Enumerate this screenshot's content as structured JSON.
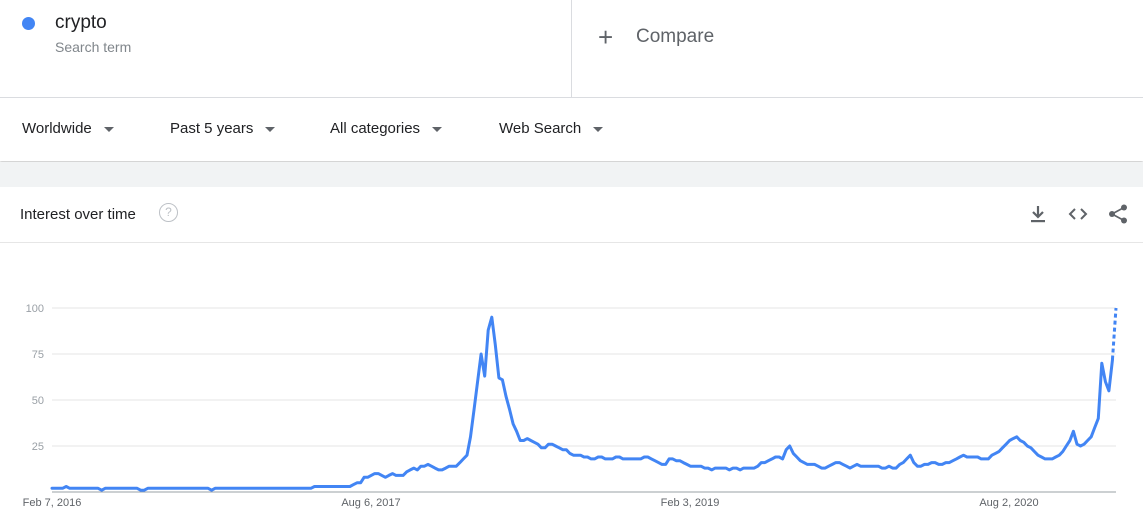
{
  "search_term": {
    "name": "crypto",
    "subtitle": "Search term",
    "color": "#4285f4"
  },
  "compare": {
    "label": "Compare"
  },
  "filters": {
    "region": "Worldwide",
    "time": "Past 5 years",
    "category": "All categories",
    "property": "Web Search"
  },
  "card": {
    "title": "Interest over time",
    "help_icon": "help-icon",
    "icons": [
      "download-icon",
      "embed-icon",
      "share-icon"
    ]
  },
  "chart_data": {
    "type": "line",
    "title": "Interest over time",
    "xlabel": "",
    "ylabel": "",
    "ylim": [
      0,
      100
    ],
    "yticks": [
      25,
      50,
      75,
      100
    ],
    "xticks": [
      "Feb 7, 2016",
      "Aug 6, 2017",
      "Feb 3, 2019",
      "Aug 2, 2020"
    ],
    "color": "#4285f4",
    "grid": true,
    "series": [
      {
        "name": "crypto",
        "values": [
          2,
          2,
          2,
          2,
          3,
          2,
          2,
          2,
          2,
          2,
          2,
          2,
          2,
          2,
          1,
          2,
          2,
          2,
          2,
          2,
          2,
          2,
          2,
          2,
          2,
          1,
          1,
          2,
          2,
          2,
          2,
          2,
          2,
          2,
          2,
          2,
          2,
          2,
          2,
          2,
          2,
          2,
          2,
          2,
          2,
          1,
          2,
          2,
          2,
          2,
          2,
          2,
          2,
          2,
          2,
          2,
          2,
          2,
          2,
          2,
          2,
          2,
          2,
          2,
          2,
          2,
          2,
          2,
          2,
          2,
          2,
          2,
          2,
          2,
          3,
          3,
          3,
          3,
          3,
          3,
          3,
          3,
          3,
          3,
          3,
          4,
          5,
          5,
          8,
          8,
          9,
          10,
          10,
          9,
          8,
          9,
          10,
          9,
          9,
          9,
          11,
          12,
          13,
          12,
          14,
          14,
          15,
          14,
          13,
          12,
          12,
          13,
          14,
          14,
          14,
          16,
          18,
          20,
          30,
          45,
          60,
          75,
          63,
          88,
          95,
          80,
          62,
          61,
          52,
          45,
          37,
          33,
          28,
          28,
          29,
          28,
          27,
          26,
          24,
          24,
          26,
          26,
          25,
          24,
          23,
          23,
          21,
          20,
          20,
          20,
          19,
          19,
          18,
          18,
          19,
          19,
          18,
          18,
          18,
          19,
          19,
          18,
          18,
          18,
          18,
          18,
          18,
          19,
          19,
          18,
          17,
          16,
          15,
          15,
          18,
          18,
          17,
          17,
          16,
          15,
          14,
          14,
          14,
          14,
          13,
          13,
          12,
          13,
          13,
          13,
          13,
          12,
          13,
          13,
          12,
          13,
          13,
          13,
          13,
          14,
          16,
          16,
          17,
          18,
          19,
          19,
          18,
          23,
          25,
          21,
          19,
          17,
          16,
          15,
          15,
          15,
          14,
          13,
          13,
          14,
          15,
          16,
          16,
          15,
          14,
          13,
          14,
          15,
          14,
          14,
          14,
          14,
          14,
          14,
          13,
          13,
          14,
          13,
          13,
          15,
          16,
          18,
          20,
          16,
          14,
          14,
          15,
          15,
          16,
          16,
          15,
          15,
          16,
          16,
          17,
          18,
          19,
          20,
          19,
          19,
          19,
          19,
          18,
          18,
          18,
          20,
          21,
          22,
          24,
          26,
          28,
          29,
          30,
          28,
          27,
          25,
          24,
          22,
          20,
          19,
          18,
          18,
          18,
          19,
          20,
          22,
          25,
          28,
          33,
          26,
          25,
          26,
          28,
          30,
          35,
          40,
          70,
          60,
          55,
          72,
          100
        ]
      }
    ]
  }
}
